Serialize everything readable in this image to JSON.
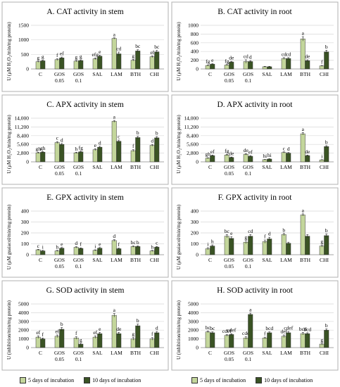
{
  "categories": [
    "C",
    "GOS 0.05",
    "GOS 0.1",
    "SAL",
    "LAM",
    "BTH",
    "CHI"
  ],
  "category_lines": [
    [
      "C",
      ""
    ],
    [
      "GOS",
      "0.05"
    ],
    [
      "GOS",
      "0.1"
    ],
    [
      "SAL",
      ""
    ],
    [
      "LAM",
      ""
    ],
    [
      "BTH",
      ""
    ],
    [
      "CHI",
      ""
    ]
  ],
  "legend": {
    "s1": "5 days of incubation",
    "s2": "10 days of incubation"
  },
  "colors": {
    "s1": "#c3d69b",
    "s2": "#3a5324",
    "edge": "#3b3b3b",
    "panel_border": "#b0b0b0",
    "grid": "#d9d9d9"
  },
  "chart_data": [
    {
      "type": "bar",
      "title": "A. CAT activity in stem",
      "ylabel": "U (μM H₂O₂/min/mg protein)",
      "ylim": [
        0,
        1500
      ],
      "yticks": [
        "0",
        "500",
        "1000",
        "1500"
      ],
      "series": [
        {
          "name": "5 days of incubation",
          "values": [
            250,
            320,
            270,
            350,
            1050,
            300,
            420
          ],
          "error": [
            20,
            30,
            25,
            30,
            20,
            25,
            30
          ]
        },
        {
          "name": "10 days of incubation",
          "values": [
            280,
            380,
            290,
            440,
            520,
            620,
            590
          ],
          "error": [
            20,
            30,
            25,
            35,
            60,
            40,
            50
          ]
        }
      ],
      "letters": [
        [
          "g",
          "g"
        ],
        [
          "f",
          "ef"
        ],
        [
          "g",
          "g"
        ],
        [
          "efg",
          "e"
        ],
        [
          "a",
          "cd"
        ],
        [
          "g",
          "bc"
        ],
        [
          "ef",
          "bc"
        ]
      ]
    },
    {
      "type": "bar",
      "title": "B. CAT activity in root",
      "ylabel": "U (μM H₂O₂/min/mg protein)",
      "ylim": [
        0,
        1000
      ],
      "yticks": [
        "0",
        "200",
        "400",
        "600",
        "800",
        "1000"
      ],
      "series": [
        {
          "name": "5 days of incubation",
          "values": [
            80,
            90,
            170,
            50,
            240,
            690,
            70
          ],
          "error": [
            10,
            10,
            40,
            10,
            20,
            50,
            10
          ]
        },
        {
          "name": "10 days of incubation",
          "values": [
            110,
            160,
            170,
            50,
            240,
            190,
            390
          ],
          "error": [
            10,
            15,
            20,
            10,
            20,
            20,
            40
          ]
        }
      ],
      "letters": [
        [
          "fg",
          "e"
        ],
        [
          "fg",
          "de"
        ],
        [
          "cd",
          "d"
        ],
        [
          "",
          ""
        ],
        [
          "cd",
          "cd"
        ],
        [
          "a",
          "de"
        ],
        [
          "f",
          "b"
        ]
      ]
    },
    {
      "type": "bar",
      "title": "C. APX activity in stem",
      "ylabel": "U (μM H₂O₂/min/mg protein)",
      "ylim": [
        0,
        14000
      ],
      "yticks": [
        "0",
        "2,800",
        "5,600",
        "8,400",
        "11,200",
        "14,000"
      ],
      "series": [
        {
          "name": "5 days of incubation",
          "values": [
            2900,
            6200,
            2900,
            3900,
            13000,
            3600,
            5300
          ],
          "error": [
            200,
            300,
            200,
            300,
            300,
            300,
            300
          ]
        },
        {
          "name": "10 days of incubation",
          "values": [
            3100,
            5600,
            3200,
            4700,
            6600,
            7800,
            7700
          ],
          "error": [
            200,
            300,
            200,
            300,
            400,
            400,
            400
          ]
        }
      ],
      "letters": [
        [
          "gh",
          "gh"
        ],
        [
          "c",
          "d"
        ],
        [
          "h",
          "fg"
        ],
        [
          "e",
          "d"
        ],
        [
          "a",
          "c"
        ],
        [
          "f",
          "b"
        ],
        [
          "d",
          "b"
        ]
      ]
    },
    {
      "type": "bar",
      "title": "D. APX activity in root",
      "ylabel": "U (μM H₂O₂/min/mg protein)",
      "ylim": [
        0,
        14000
      ],
      "yticks": [
        "0",
        "2,800",
        "5,600",
        "8,400",
        "11,200",
        "14,000"
      ],
      "series": [
        {
          "name": "5 days of incubation",
          "values": [
            1200,
            2200,
            2400,
            700,
            3000,
            9000,
            600
          ],
          "error": [
            100,
            200,
            200,
            100,
            200,
            400,
            100
          ]
        },
        {
          "name": "10 days of incubation",
          "values": [
            2000,
            1400,
            1800,
            900,
            2800,
            2000,
            4900
          ],
          "error": [
            200,
            150,
            200,
            100,
            200,
            200,
            300
          ]
        }
      ],
      "letters": [
        [
          "gh",
          "ef"
        ],
        [
          "fg",
          "de"
        ],
        [
          "de",
          "ef"
        ],
        [
          "hi",
          "hi"
        ],
        [
          "c",
          "d"
        ],
        [
          "a",
          "de"
        ],
        [
          "i",
          "b"
        ]
      ]
    },
    {
      "type": "bar",
      "title": "E. GPX activity in stem",
      "ylabel": "U (μM guaiacol/min/mg protein)",
      "ylim": [
        0,
        400
      ],
      "yticks": [
        "0",
        "100",
        "200",
        "300",
        "400"
      ],
      "series": [
        {
          "name": "5 days of incubation",
          "values": [
            45,
            35,
            68,
            40,
            130,
            75,
            35
          ],
          "error": [
            5,
            5,
            6,
            5,
            8,
            6,
            5
          ]
        },
        {
          "name": "10 days of incubation",
          "values": [
            35,
            60,
            58,
            60,
            55,
            75,
            70
          ],
          "error": [
            5,
            6,
            5,
            6,
            6,
            6,
            6
          ]
        }
      ],
      "letters": [
        [
          "c",
          "i"
        ],
        [
          "h",
          "e"
        ],
        [
          "d",
          "f"
        ],
        [
          "i",
          "e"
        ],
        [
          "d",
          "f"
        ],
        [
          "bc",
          "b"
        ],
        [
          "h",
          "c"
        ]
      ]
    },
    {
      "type": "bar",
      "title": "F. GPX activity in root",
      "ylabel": "U (μM guaiacol/min/mg protein)",
      "ylim": [
        0,
        400
      ],
      "yticks": [
        "0",
        "100",
        "200",
        "300",
        "400"
      ],
      "series": [
        {
          "name": "5 days of incubation",
          "values": [
            55,
            170,
            115,
            120,
            185,
            365,
            80
          ],
          "error": [
            10,
            15,
            15,
            15,
            10,
            10,
            10
          ]
        },
        {
          "name": "10 days of incubation",
          "values": [
            80,
            150,
            170,
            145,
            105,
            170,
            175
          ],
          "error": [
            10,
            15,
            15,
            15,
            10,
            15,
            15
          ]
        }
      ],
      "letters": [
        [
          "i",
          "h"
        ],
        [
          "bc",
          "e"
        ],
        [
          "g",
          "cd"
        ],
        [
          "f",
          "d"
        ],
        [
          "b",
          ""
        ],
        [
          "a",
          ""
        ],
        [
          "g",
          "b"
        ]
      ]
    },
    {
      "type": "bar",
      "title": "G. SOD activity in stem",
      "ylabel": "U (inhibition/min/mg protein)",
      "ylim": [
        0,
        5000
      ],
      "yticks": [
        "0",
        "1000",
        "2000",
        "3000",
        "4000",
        "5000"
      ],
      "series": [
        {
          "name": "5 days of incubation",
          "values": [
            1200,
            1300,
            1100,
            1200,
            3700,
            1000,
            1000
          ],
          "error": [
            150,
            150,
            150,
            150,
            200,
            150,
            150
          ]
        },
        {
          "name": "10 days of incubation",
          "values": [
            1000,
            2100,
            400,
            1600,
            1600,
            2500,
            1700
          ],
          "error": [
            100,
            200,
            100,
            150,
            150,
            200,
            150
          ]
        }
      ],
      "letters": [
        [
          "ef",
          "f"
        ],
        [
          "ef",
          "b"
        ],
        [
          "f",
          "g"
        ],
        [
          "ef",
          "e"
        ],
        [
          "a",
          "de"
        ],
        [
          "g",
          "b"
        ],
        [
          "f",
          "d"
        ]
      ]
    },
    {
      "type": "bar",
      "title": "H. SOD activity in root",
      "ylabel": "U (inhibition/min/mg protein)",
      "ylim": [
        0,
        5000
      ],
      "yticks": [
        "0",
        "1000",
        "2000",
        "3000",
        "4000",
        "5000"
      ],
      "series": [
        {
          "name": "5 days of incubation",
          "values": [
            1800,
            1400,
            1100,
            1100,
            1300,
            1600,
            400
          ],
          "error": [
            100,
            100,
            150,
            100,
            150,
            150,
            100
          ]
        },
        {
          "name": "10 days of incubation",
          "values": [
            1700,
            1500,
            3800,
            1700,
            1700,
            1600,
            2000
          ],
          "error": [
            100,
            100,
            150,
            100,
            150,
            100,
            150
          ]
        }
      ],
      "letters": [
        [
          "bc",
          "bc"
        ],
        [
          "cdef",
          "cdef"
        ],
        [
          "cde",
          "a"
        ],
        [
          "f",
          "bcd"
        ],
        [
          "def",
          "cdef"
        ],
        [
          "bcd",
          "bcd"
        ],
        [
          "g",
          "b"
        ]
      ]
    }
  ]
}
